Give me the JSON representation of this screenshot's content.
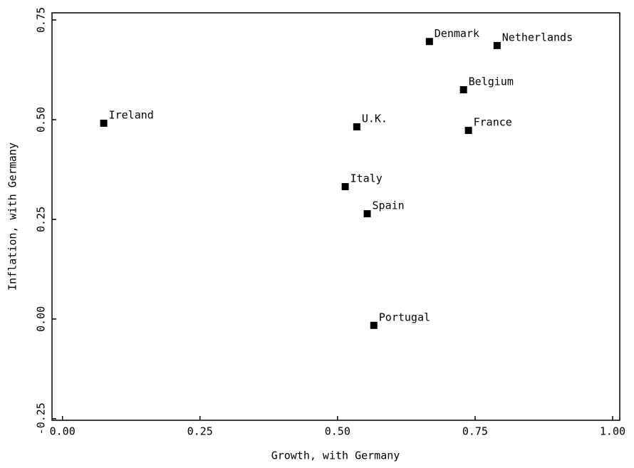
{
  "chart_data": {
    "type": "scatter",
    "xlabel": "Growth, with Germany",
    "ylabel": "Inflation, with Germany",
    "labels": [
      "Ireland",
      "U.K.",
      "Denmark",
      "Netherlands",
      "Belgium",
      "France",
      "Italy",
      "Spain",
      "Portugal"
    ],
    "x": [
      0.075,
      0.535,
      0.667,
      0.79,
      0.729,
      0.738,
      0.514,
      0.554,
      0.566
    ],
    "y": [
      0.491,
      0.482,
      0.696,
      0.686,
      0.575,
      0.473,
      0.332,
      0.264,
      -0.016
    ],
    "color": "#000000",
    "xlim": [
      -0.019,
      1.013
    ],
    "ylim": [
      -0.254,
      0.768
    ],
    "xticks": [
      {
        "value": 0,
        "label": "0.00"
      },
      {
        "value": 0.25,
        "label": "0.25"
      },
      {
        "value": 0.5,
        "label": "0.50"
      },
      {
        "value": 0.75,
        "label": "0.75"
      },
      {
        "value": 1,
        "label": "1.00"
      }
    ],
    "yticks": [
      {
        "value": -0.25,
        "label": "-0.25"
      },
      {
        "value": 0,
        "label": "0.00"
      },
      {
        "value": 0.25,
        "label": "0.25"
      },
      {
        "value": 0.5,
        "label": "0.50"
      },
      {
        "value": 0.75,
        "label": "0.75"
      }
    ],
    "grid": false
  }
}
